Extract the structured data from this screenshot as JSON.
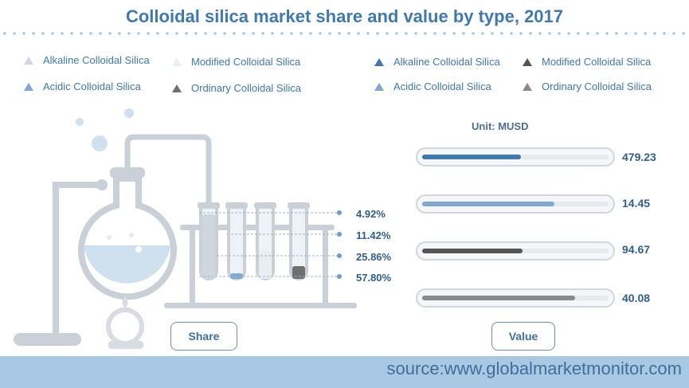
{
  "title": "Colloidal silica market share and value by type, 2017",
  "legend_left": [
    {
      "label": "Alkaline Colloidal Silica",
      "color": "#cfd6dd"
    },
    {
      "label": "Modified Colloidal Silica",
      "color": "#e9eef3"
    },
    {
      "label": "Acidic Colloidal Silica",
      "color": "#7fa9d2"
    },
    {
      "label": "Ordinary Colloidal Silica",
      "color": "#6f6f6f"
    }
  ],
  "legend_right": [
    {
      "label": "Alkaline Colloidal Silica",
      "color": "#3f79ad"
    },
    {
      "label": "Modified Colloidal Silica",
      "color": "#555555"
    },
    {
      "label": "Acidic Colloidal Silica",
      "color": "#7fa9d2"
    },
    {
      "label": "Ordinary Colloidal Silica",
      "color": "#8a8a8a"
    }
  ],
  "labels": {
    "unit": "Unit: MUSD",
    "share": "Share",
    "value": "Value",
    "source": "source:www.globalmarketmonitor.com"
  },
  "chart_data": [
    {
      "type": "bar",
      "subtitle": "Share",
      "categories": [
        "Alkaline Colloidal Silica",
        "Modified Colloidal Silica",
        "Acidic Colloidal Silica",
        "Ordinary Colloidal Silica"
      ],
      "values": [
        57.8,
        4.92,
        25.86,
        11.42
      ],
      "value_labels": [
        "57.80%",
        "4.92%",
        "25.86%",
        "11.42%"
      ]
    },
    {
      "type": "bar",
      "subtitle": "Value",
      "unit": "Unit: MUSD",
      "categories": [
        "Alkaline Colloidal Silica",
        "Acidic Colloidal Silica",
        "Modified Colloidal Silica",
        "Ordinary Colloidal Silica"
      ],
      "values": [
        479.23,
        14.45,
        94.67,
        40.08
      ],
      "value_labels": [
        "479.23",
        "14.45",
        "94.67",
        "40.08"
      ],
      "bar_fill_fractions": [
        0.53,
        0.71,
        0.54,
        0.82
      ],
      "colors": [
        "#3f79ad",
        "#7fa9d2",
        "#555555",
        "#8a8a8a"
      ]
    }
  ]
}
